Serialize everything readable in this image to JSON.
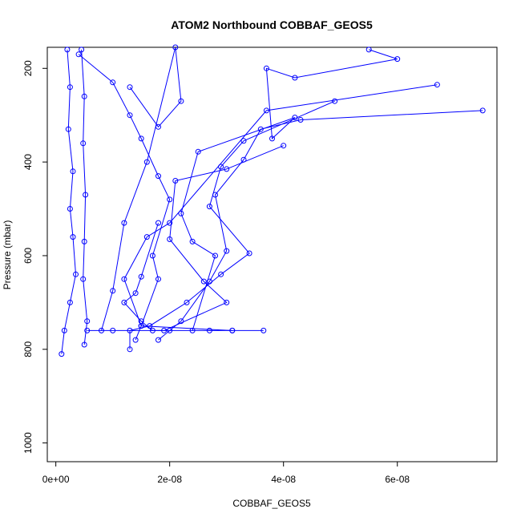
{
  "chart_data": {
    "type": "scatter",
    "title": "ATOM2 Northbound COBBAF_GEOS5",
    "xlabel": "COBBAF_GEOS5",
    "ylabel": "Pressure (mbar)",
    "x_ticks": [
      0,
      2e-08,
      4e-08,
      6e-08
    ],
    "x_tick_labels": [
      "0e+00",
      "2e-08",
      "4e-08",
      "6e-08"
    ],
    "y_ticks": [
      200,
      400,
      600,
      800,
      1000
    ],
    "y_tick_labels": [
      "200",
      "400",
      "600",
      "800",
      "1000"
    ],
    "xlim": [
      -1.5e-09,
      7.75e-08
    ],
    "ylim": [
      1040,
      155
    ],
    "y_reversed": true,
    "grid": false,
    "legend": "none",
    "series_color": "#0000ff",
    "marker": "open-circle",
    "series": [
      {
        "points": [
          [
            2e-09,
            160
          ],
          [
            2.5e-09,
            240
          ],
          [
            2.2e-09,
            330
          ],
          [
            3e-09,
            420
          ],
          [
            2.5e-09,
            500
          ],
          [
            3e-09,
            560
          ],
          [
            3.5e-09,
            640
          ],
          [
            2.5e-09,
            700
          ],
          [
            1.5e-09,
            760
          ],
          [
            1e-09,
            810
          ]
        ]
      },
      {
        "points": [
          [
            4.5e-09,
            160
          ],
          [
            5e-09,
            260
          ],
          [
            4.8e-09,
            360
          ],
          [
            5.2e-09,
            470
          ],
          [
            5e-09,
            570
          ],
          [
            4.8e-09,
            650
          ],
          [
            5.5e-09,
            740
          ],
          [
            5e-09,
            790
          ]
        ]
      },
      {
        "points": [
          [
            4e-09,
            170
          ],
          [
            1e-08,
            230
          ],
          [
            1.3e-08,
            300
          ],
          [
            1.5e-08,
            350
          ],
          [
            1.8e-08,
            430
          ],
          [
            2e-08,
            480
          ],
          [
            1.7e-08,
            600
          ],
          [
            1.8e-08,
            650
          ],
          [
            1.5e-08,
            750
          ],
          [
            1.4e-08,
            780
          ]
        ]
      },
      {
        "points": [
          [
            1.3e-08,
            240
          ],
          [
            1.8e-08,
            325
          ],
          [
            2.2e-08,
            270
          ],
          [
            2.1e-08,
            155
          ],
          [
            1.6e-08,
            400
          ],
          [
            1.2e-08,
            530
          ],
          [
            1e-08,
            675
          ],
          [
            8e-09,
            760
          ]
        ]
      },
      {
        "points": [
          [
            5.5e-08,
            160
          ],
          [
            6e-08,
            180
          ],
          [
            4.2e-08,
            220
          ],
          [
            3.7e-08,
            200
          ],
          [
            3.8e-08,
            350
          ],
          [
            4.2e-08,
            305
          ],
          [
            2.5e-08,
            378
          ],
          [
            2.2e-08,
            510
          ],
          [
            2.4e-08,
            570
          ],
          [
            2.8e-08,
            600
          ],
          [
            2.4e-08,
            760
          ]
        ]
      },
      {
        "points": [
          [
            6.7e-08,
            235
          ],
          [
            3.7e-08,
            290
          ],
          [
            2e-08,
            530
          ],
          [
            1.6e-08,
            560
          ],
          [
            1.2e-08,
            650
          ],
          [
            1.5e-08,
            750
          ],
          [
            3.1e-08,
            760
          ]
        ]
      },
      {
        "points": [
          [
            7.5e-08,
            290
          ],
          [
            4.3e-08,
            310
          ],
          [
            3.6e-08,
            330
          ],
          [
            3.3e-08,
            395
          ],
          [
            2.8e-08,
            470
          ],
          [
            3e-08,
            590
          ],
          [
            2.7e-08,
            655
          ],
          [
            2.2e-08,
            740
          ],
          [
            1.8e-08,
            780
          ]
        ]
      },
      {
        "points": [
          [
            4.9e-08,
            270
          ],
          [
            3.3e-08,
            355
          ],
          [
            2.9e-08,
            410
          ],
          [
            2.7e-08,
            495
          ],
          [
            3.4e-08,
            595
          ],
          [
            2.9e-08,
            640
          ],
          [
            2.3e-08,
            700
          ],
          [
            1.65e-08,
            750
          ],
          [
            1.3e-08,
            760
          ],
          [
            1.3e-08,
            800
          ]
        ]
      },
      {
        "points": [
          [
            4e-08,
            365
          ],
          [
            3e-08,
            415
          ],
          [
            2.1e-08,
            440
          ],
          [
            2e-08,
            565
          ],
          [
            2.6e-08,
            655
          ],
          [
            3e-08,
            700
          ],
          [
            1.9e-08,
            760
          ],
          [
            1e-08,
            760
          ],
          [
            5.5e-09,
            760
          ]
        ]
      },
      {
        "points": [
          [
            1.8e-08,
            530
          ],
          [
            1.5e-08,
            645
          ],
          [
            1.4e-08,
            680
          ],
          [
            1.2e-08,
            700
          ],
          [
            1.5e-08,
            740
          ],
          [
            1.7e-08,
            760
          ],
          [
            2e-08,
            760
          ],
          [
            2.7e-08,
            760
          ],
          [
            3.1e-08,
            760
          ],
          [
            3.65e-08,
            760
          ]
        ]
      }
    ]
  }
}
